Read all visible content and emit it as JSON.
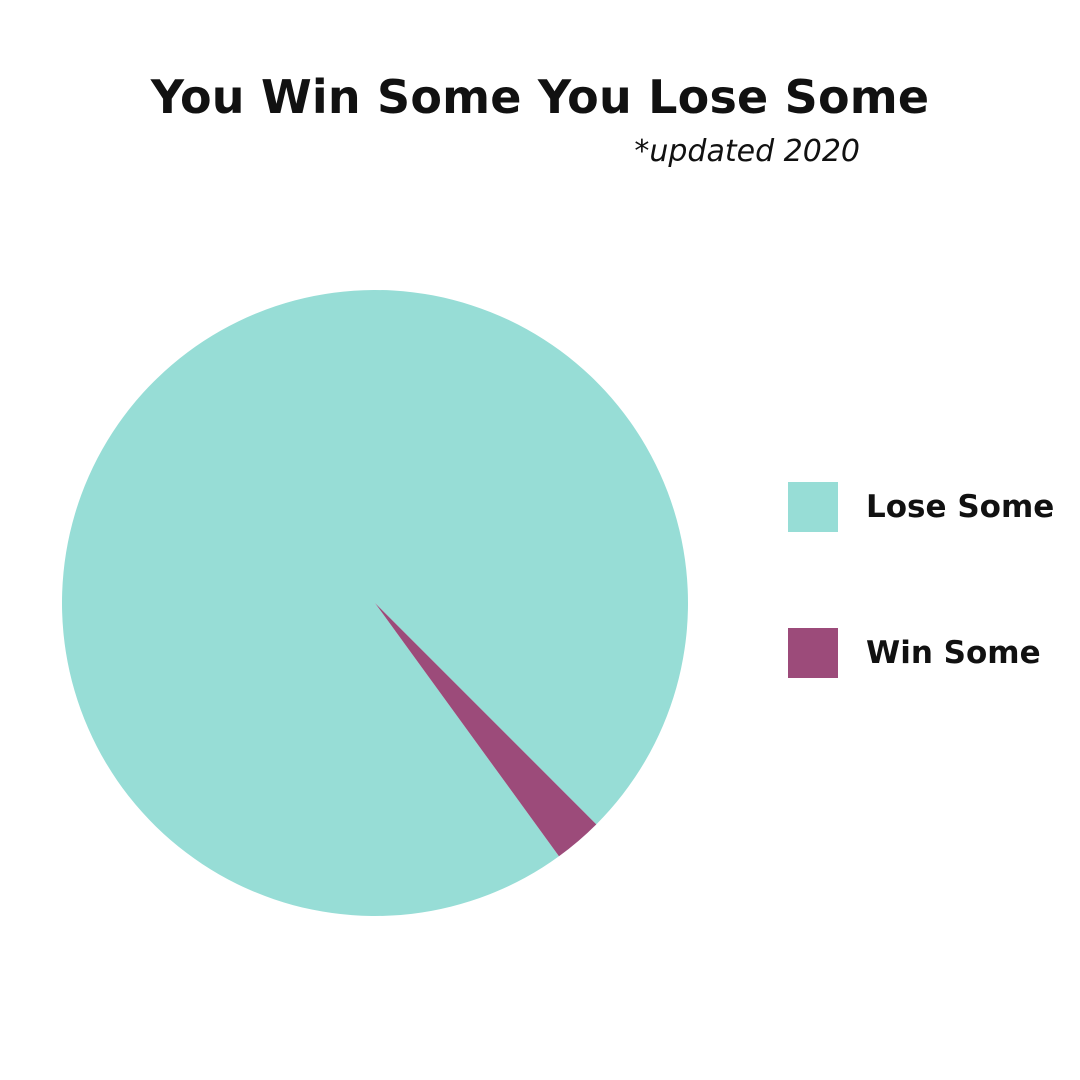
{
  "chart_data": {
    "type": "pie",
    "title": "You Win Some You Lose Some",
    "subtitle": "*updated 2020",
    "slices": [
      {
        "label": "Lose Some",
        "value": 97.5,
        "color": "#97ddd6"
      },
      {
        "label": "Win Some",
        "value": 2.5,
        "color": "#9c4b7a"
      }
    ],
    "legend_position": "right"
  }
}
